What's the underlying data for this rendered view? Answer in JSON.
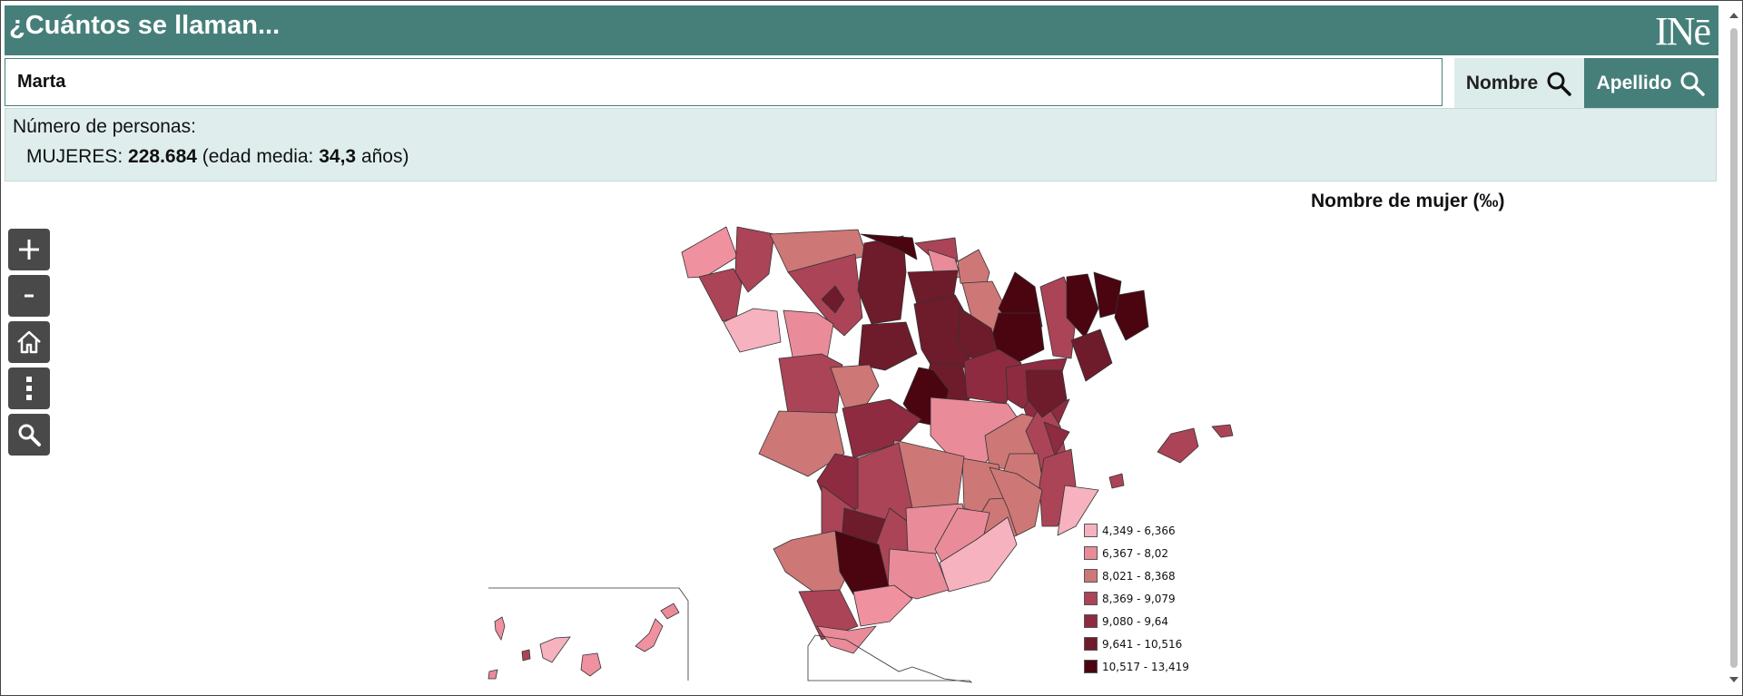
{
  "header": {
    "title": "¿Cuántos se llaman...",
    "logo_text": "INē"
  },
  "search": {
    "value": "Marta",
    "nombre_label": "Nombre",
    "apellido_label": "Apellido"
  },
  "info": {
    "label": "Número de personas:",
    "gender_label": "MUJERES:",
    "count": "228.684",
    "edad_prefix": "(edad media:",
    "edad_value": "34,3",
    "edad_suffix": "años)"
  },
  "map": {
    "title": "Nombre de mujer (‰)",
    "legend": [
      {
        "label": "4,349 - 6,366",
        "color": "#f6b2bf"
      },
      {
        "label": "6,367 - 8,02",
        "color": "#e98b99"
      },
      {
        "label": "8,021 - 8,368",
        "color": "#cd7777"
      },
      {
        "label": "8,369 - 9,079",
        "color": "#ab4457"
      },
      {
        "label": "9,080 - 9,64",
        "color": "#8e2b40"
      },
      {
        "label": "9,641 - 10,516",
        "color": "#6e1b2b"
      },
      {
        "label": "10,517 - 13,419",
        "color": "#4a0510"
      }
    ]
  },
  "controls": [
    "zoom-in-icon",
    "zoom-out-icon",
    "home-icon",
    "more-vertical-icon",
    "search-icon"
  ]
}
